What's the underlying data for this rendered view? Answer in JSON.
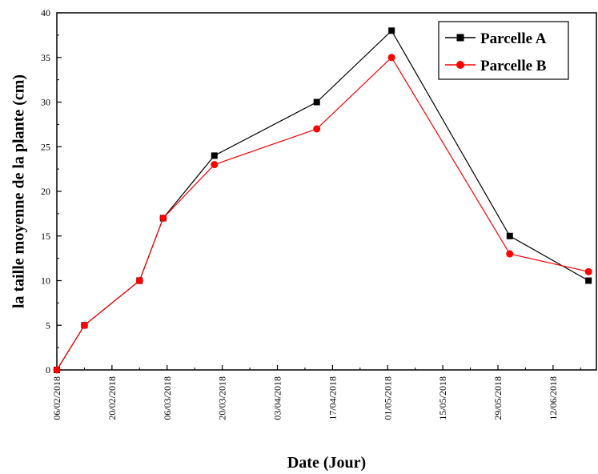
{
  "chart_data": {
    "type": "line",
    "title": "",
    "xlabel": "Date (Jour)",
    "ylabel": "la taille moyenne de la plante (cm)",
    "x_ticks": [
      "06/02/2018",
      "20/02/2018",
      "06/03/2018",
      "20/03/2018",
      "03/04/2018",
      "17/04/2018",
      "01/05/2018",
      "15/05/2018",
      "29/05/2018",
      "12/06/2018"
    ],
    "y_ticks": [
      "0",
      "5",
      "10",
      "15",
      "20",
      "25",
      "30",
      "35",
      "40"
    ],
    "xlim": [
      "06/02/2018",
      "23/06/2018"
    ],
    "ylim": [
      0,
      40
    ],
    "legend_position": "top-right",
    "series": [
      {
        "name": "Parcelle A",
        "color": "#000000",
        "marker": "square",
        "points": [
          {
            "x": "06/02/2018",
            "y": 0
          },
          {
            "x": "13/02/2018",
            "y": 5
          },
          {
            "x": "27/02/2018",
            "y": 10
          },
          {
            "x": "05/03/2018",
            "y": 17
          },
          {
            "x": "18/03/2018",
            "y": 24
          },
          {
            "x": "13/04/2018",
            "y": 30
          },
          {
            "x": "02/05/2018",
            "y": 38
          },
          {
            "x": "01/06/2018",
            "y": 15
          },
          {
            "x": "21/06/2018",
            "y": 10
          }
        ]
      },
      {
        "name": "Parcelle B",
        "color": "#ff0000",
        "marker": "circle",
        "points": [
          {
            "x": "06/02/2018",
            "y": 0
          },
          {
            "x": "13/02/2018",
            "y": 5
          },
          {
            "x": "27/02/2018",
            "y": 10
          },
          {
            "x": "05/03/2018",
            "y": 17
          },
          {
            "x": "18/03/2018",
            "y": 23
          },
          {
            "x": "13/04/2018",
            "y": 27
          },
          {
            "x": "02/05/2018",
            "y": 35
          },
          {
            "x": "01/06/2018",
            "y": 13
          },
          {
            "x": "21/06/2018",
            "y": 11
          }
        ]
      }
    ]
  }
}
